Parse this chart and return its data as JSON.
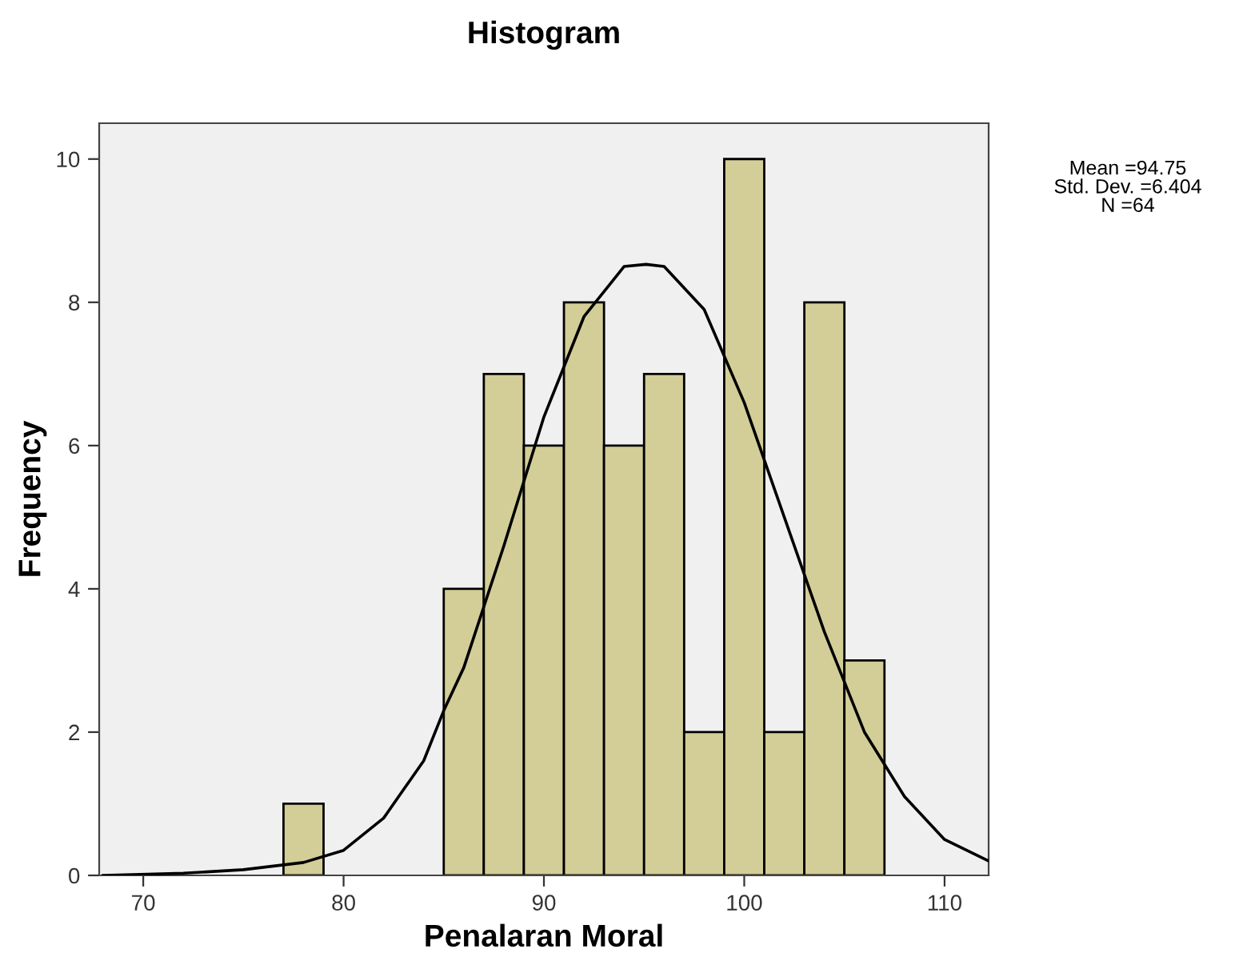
{
  "chart_data": {
    "type": "histogram",
    "title": "Histogram",
    "xlabel": "Penalaran Moral",
    "ylabel": "Frequency",
    "bins": [
      77,
      79,
      81,
      83,
      85,
      87,
      89,
      91,
      93,
      95,
      97,
      99,
      101,
      103,
      105,
      107
    ],
    "values": [
      1,
      0,
      0,
      0,
      4,
      7,
      6,
      8,
      6,
      7,
      2,
      10,
      2,
      8,
      3
    ],
    "color": "#d3ce97",
    "series": [
      {
        "type": "line",
        "color": "#000000",
        "x": [
          68,
          72,
          75,
          78,
          80,
          82,
          84,
          85,
          86,
          88,
          90,
          92,
          94,
          95.1,
          96,
          98,
          100,
          102,
          104,
          106,
          108,
          110,
          112.2
        ],
        "values": [
          0.0,
          0.03,
          0.08,
          0.18,
          0.35,
          0.8,
          1.6,
          2.3,
          2.9,
          4.6,
          6.4,
          7.8,
          8.5,
          8.53,
          8.5,
          7.9,
          6.6,
          5.0,
          3.4,
          2.0,
          1.1,
          0.5,
          0.2
        ]
      }
    ],
    "xlim": [
      67.8,
      112.2
    ],
    "xticks": [
      70,
      80,
      90,
      100,
      110
    ],
    "ylim": [
      0,
      10.5
    ],
    "yticks": [
      0,
      2,
      4,
      6,
      8,
      10
    ],
    "grid": false,
    "legend": false,
    "annotations": [
      "Mean =94.75\nStd. Dev. =6.404\nN =64"
    ]
  }
}
